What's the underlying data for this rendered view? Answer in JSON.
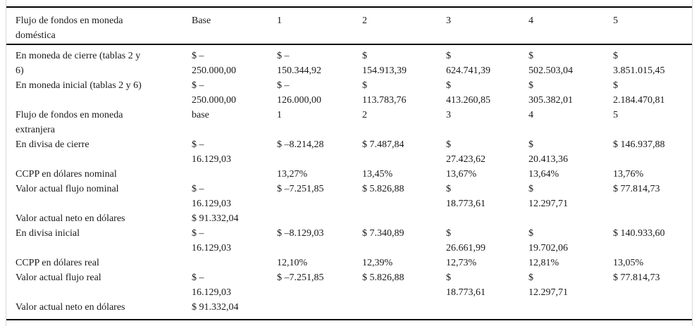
{
  "figure": {
    "type": "table",
    "language": "es",
    "header": [
      "Flujo de fondos en moneda\ndoméstica",
      "Base",
      "1",
      "2",
      "3",
      "4",
      "5"
    ],
    "rows": [
      [
        "En moneda de cierre (tablas 2 y\n6)",
        "$ –\n250.000,00",
        "$ –\n150.344,92",
        "$\n154.913,39",
        "$\n624.741,39",
        "$\n502.503,04",
        "$\n3.851.015,45"
      ],
      [
        "En moneda inicial (tablas 2 y 6)",
        "$ –\n250.000,00",
        "$ –\n126.000,00",
        "$\n113.783,76",
        "$\n413.260,85",
        "$\n305.382,01",
        "$\n2.184.470,81"
      ],
      [
        "Flujo de fondos en moneda\nextranjera",
        "base",
        "1",
        "2",
        "3",
        "4",
        "5"
      ],
      [
        "En divisa de cierre",
        "$ –\n16.129,03",
        "$ –8.214,28",
        "$ 7.487,84",
        "$\n27.423,62",
        "$\n20.413,36",
        "$ 146.937,88"
      ],
      [
        "CCPP en dólares nominal",
        "",
        "13,27%",
        "13,45%",
        "13,67%",
        "13,64%",
        "13,76%"
      ],
      [
        "Valor actual flujo nominal",
        "$ –\n16.129,03",
        "$ –7.251,85",
        "$ 5.826,88",
        "$\n18.773,61",
        "$\n12.297,71",
        "$ 77.814,73"
      ],
      [
        "Valor actual neto en dólares",
        "$ 91.332,04",
        "",
        "",
        "",
        "",
        ""
      ],
      [
        "En divisa inicial",
        "$ –\n16.129,03",
        "$ –8.129,03",
        "$ 7.340,89",
        "$\n26.661,99",
        "$\n19.702,06",
        "$ 140.933,60"
      ],
      [
        "CCPP en dólares real",
        "",
        "12,10%",
        "12,39%",
        "12,73%",
        "12,81%",
        "13,05%"
      ],
      [
        "Valor actual flujo real",
        "$ –\n16.129,03",
        "$ –7.251,85",
        "$ 5.826,88",
        "$\n18.773,61",
        "$\n12.297,71",
        "$ 77.814,73"
      ],
      [
        "Valor actual neto en dólares",
        "$ 91.332,04",
        "",
        "",
        "",
        "",
        ""
      ]
    ],
    "colors": {
      "text": "#1a1a1a",
      "rule": "#000000",
      "side_frame": "#d9d9d9",
      "background": "#ffffff"
    }
  }
}
